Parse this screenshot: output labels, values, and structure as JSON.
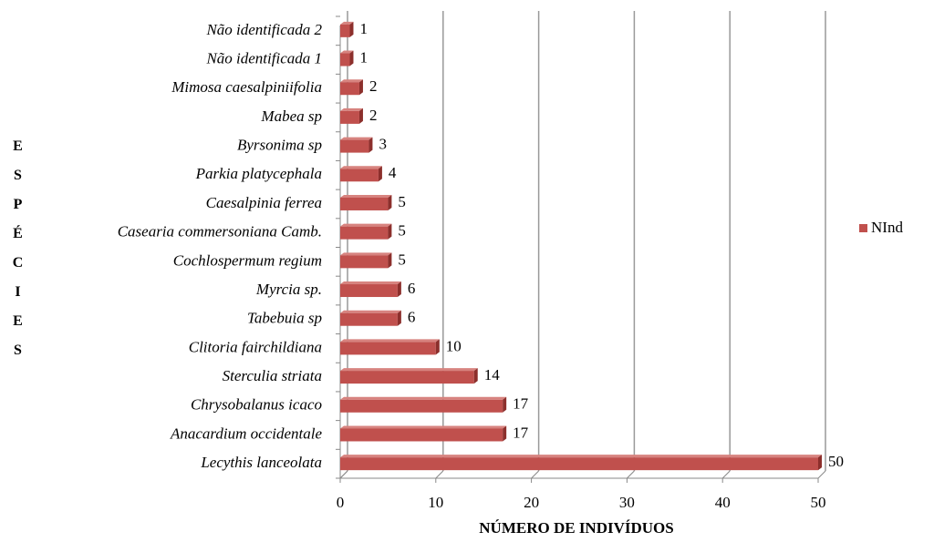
{
  "chart_data": {
    "type": "bar",
    "orientation": "horizontal",
    "x_label": "NÚMERO DE INDIVÍDUOS",
    "y_label": "ESPÉCIES",
    "categories": [
      "Não identificada 2",
      "Não identificada 1",
      "Mimosa caesalpiniifolia",
      "Mabea sp",
      "Byrsonima sp",
      "Parkia platycephala",
      "Caesalpinia ferrea",
      "Casearia commersoniana Camb.",
      "Cochlospermum regium",
      "Myrcia sp.",
      "Tabebuia sp",
      "Clitoria fairchildiana",
      "Sterculia striata",
      "Chrysobalanus icaco",
      "Anacardium occidentale",
      "Lecythis lanceolata"
    ],
    "series": [
      {
        "name": "NInd",
        "color": "#c0504d",
        "values": [
          1,
          1,
          2,
          2,
          3,
          4,
          5,
          5,
          5,
          6,
          6,
          10,
          14,
          17,
          17,
          50
        ]
      }
    ],
    "xlim": [
      0,
      50
    ],
    "xticks": [
      0,
      10,
      20,
      30,
      40,
      50
    ],
    "grid": true,
    "legend": "right"
  }
}
